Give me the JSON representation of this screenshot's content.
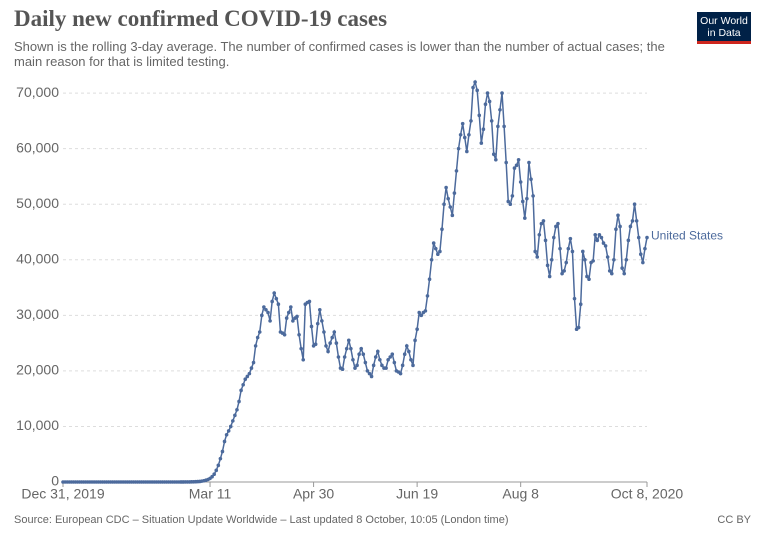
{
  "chart_data": {
    "type": "line",
    "title": "Daily new confirmed COVID-19 cases",
    "subtitle": "Shown is the rolling 3-day average. The number of confirmed cases is lower than the number of actual cases; the main reason for that is limited testing.",
    "logo": [
      "Our World",
      "in Data"
    ],
    "source": "Source: European CDC – Situation Update Worldwide – Last updated 8 October, 10:05 (London time)",
    "license": "CC BY",
    "grid": true,
    "x": [
      "2019-12-31",
      "2020-01-01",
      "2020-01-02",
      "2020-01-03",
      "2020-01-04",
      "2020-01-05",
      "2020-01-06",
      "2020-01-07",
      "2020-01-08",
      "2020-01-09",
      "2020-01-10",
      "2020-01-11",
      "2020-01-12",
      "2020-01-13",
      "2020-01-14",
      "2020-01-15",
      "2020-01-16",
      "2020-01-17",
      "2020-01-18",
      "2020-01-19",
      "2020-01-20",
      "2020-01-21",
      "2020-01-22",
      "2020-01-23",
      "2020-01-24",
      "2020-01-25",
      "2020-01-26",
      "2020-01-27",
      "2020-01-28",
      "2020-01-29",
      "2020-01-30",
      "2020-01-31",
      "2020-02-01",
      "2020-02-02",
      "2020-02-03",
      "2020-02-04",
      "2020-02-05",
      "2020-02-06",
      "2020-02-07",
      "2020-02-08",
      "2020-02-09",
      "2020-02-10",
      "2020-02-11",
      "2020-02-12",
      "2020-02-13",
      "2020-02-14",
      "2020-02-15",
      "2020-02-16",
      "2020-02-17",
      "2020-02-18",
      "2020-02-19",
      "2020-02-20",
      "2020-02-21",
      "2020-02-22",
      "2020-02-23",
      "2020-02-24",
      "2020-02-25",
      "2020-02-26",
      "2020-02-27",
      "2020-02-28",
      "2020-02-29",
      "2020-03-01",
      "2020-03-02",
      "2020-03-03",
      "2020-03-04",
      "2020-03-05",
      "2020-03-06",
      "2020-03-07",
      "2020-03-08",
      "2020-03-09",
      "2020-03-10",
      "2020-03-11",
      "2020-03-12",
      "2020-03-13",
      "2020-03-14",
      "2020-03-15",
      "2020-03-16",
      "2020-03-17",
      "2020-03-18",
      "2020-03-19",
      "2020-03-20",
      "2020-03-21",
      "2020-03-22",
      "2020-03-23",
      "2020-03-24",
      "2020-03-25",
      "2020-03-26",
      "2020-03-27",
      "2020-03-28",
      "2020-03-29",
      "2020-03-30",
      "2020-03-31",
      "2020-04-01",
      "2020-04-02",
      "2020-04-03",
      "2020-04-04",
      "2020-04-05",
      "2020-04-06",
      "2020-04-07",
      "2020-04-08",
      "2020-04-09",
      "2020-04-10",
      "2020-04-11",
      "2020-04-12",
      "2020-04-13",
      "2020-04-14",
      "2020-04-15",
      "2020-04-16",
      "2020-04-17",
      "2020-04-18",
      "2020-04-19",
      "2020-04-20",
      "2020-04-21",
      "2020-04-22",
      "2020-04-23",
      "2020-04-24",
      "2020-04-25",
      "2020-04-26",
      "2020-04-27",
      "2020-04-28",
      "2020-04-29",
      "2020-04-30",
      "2020-05-01",
      "2020-05-02",
      "2020-05-03",
      "2020-05-04",
      "2020-05-05",
      "2020-05-06",
      "2020-05-07",
      "2020-05-08",
      "2020-05-09",
      "2020-05-10",
      "2020-05-11",
      "2020-05-12",
      "2020-05-13",
      "2020-05-14",
      "2020-05-15",
      "2020-05-16",
      "2020-05-17",
      "2020-05-18",
      "2020-05-19",
      "2020-05-20",
      "2020-05-21",
      "2020-05-22",
      "2020-05-23",
      "2020-05-24",
      "2020-05-25",
      "2020-05-26",
      "2020-05-27",
      "2020-05-28",
      "2020-05-29",
      "2020-05-30",
      "2020-05-31",
      "2020-06-01",
      "2020-06-02",
      "2020-06-03",
      "2020-06-04",
      "2020-06-05",
      "2020-06-06",
      "2020-06-07",
      "2020-06-08",
      "2020-06-09",
      "2020-06-10",
      "2020-06-11",
      "2020-06-12",
      "2020-06-13",
      "2020-06-14",
      "2020-06-15",
      "2020-06-16",
      "2020-06-17",
      "2020-06-18",
      "2020-06-19",
      "2020-06-20",
      "2020-06-21",
      "2020-06-22",
      "2020-06-23",
      "2020-06-24",
      "2020-06-25",
      "2020-06-26",
      "2020-06-27",
      "2020-06-28",
      "2020-06-29",
      "2020-06-30",
      "2020-07-01",
      "2020-07-02",
      "2020-07-03",
      "2020-07-04",
      "2020-07-05",
      "2020-07-06",
      "2020-07-07",
      "2020-07-08",
      "2020-07-09",
      "2020-07-10",
      "2020-07-11",
      "2020-07-12",
      "2020-07-13",
      "2020-07-14",
      "2020-07-15",
      "2020-07-16",
      "2020-07-17",
      "2020-07-18",
      "2020-07-19",
      "2020-07-20",
      "2020-07-21",
      "2020-07-22",
      "2020-07-23",
      "2020-07-24",
      "2020-07-25",
      "2020-07-26",
      "2020-07-27",
      "2020-07-28",
      "2020-07-29",
      "2020-07-30",
      "2020-07-31",
      "2020-08-01",
      "2020-08-02",
      "2020-08-03",
      "2020-08-04",
      "2020-08-05",
      "2020-08-06",
      "2020-08-07",
      "2020-08-08",
      "2020-08-09",
      "2020-08-10",
      "2020-08-11",
      "2020-08-12",
      "2020-08-13",
      "2020-08-14",
      "2020-08-15",
      "2020-08-16",
      "2020-08-17",
      "2020-08-18",
      "2020-08-19",
      "2020-08-20",
      "2020-08-21",
      "2020-08-22",
      "2020-08-23",
      "2020-08-24",
      "2020-08-25",
      "2020-08-26",
      "2020-08-27",
      "2020-08-28",
      "2020-08-29",
      "2020-08-30",
      "2020-08-31",
      "2020-09-01",
      "2020-09-02",
      "2020-09-03",
      "2020-09-04",
      "2020-09-05",
      "2020-09-06",
      "2020-09-07",
      "2020-09-08",
      "2020-09-09",
      "2020-09-10",
      "2020-09-11",
      "2020-09-12",
      "2020-09-13",
      "2020-09-14",
      "2020-09-15",
      "2020-09-16",
      "2020-09-17",
      "2020-09-18",
      "2020-09-19",
      "2020-09-20",
      "2020-09-21",
      "2020-09-22",
      "2020-09-23",
      "2020-09-24",
      "2020-09-25",
      "2020-09-26",
      "2020-09-27",
      "2020-09-28",
      "2020-09-29",
      "2020-09-30",
      "2020-10-01",
      "2020-10-02",
      "2020-10-03",
      "2020-10-04",
      "2020-10-05",
      "2020-10-06",
      "2020-10-07",
      "2020-10-08"
    ],
    "series": [
      {
        "name": "United States",
        "color": "#4c6a9c",
        "values": [
          0,
          0,
          0,
          0,
          0,
          0,
          0,
          0,
          0,
          0,
          0,
          0,
          0,
          0,
          0,
          0,
          0,
          0,
          0,
          0,
          0,
          0,
          0,
          0,
          0,
          0,
          0,
          0,
          0,
          0,
          0,
          0,
          0,
          0,
          0,
          0,
          0,
          0,
          0,
          0,
          0,
          0,
          0,
          0,
          0,
          0,
          0,
          0,
          0,
          0,
          0,
          0,
          0,
          0,
          0,
          1,
          2,
          3,
          5,
          8,
          12,
          18,
          25,
          35,
          50,
          70,
          100,
          150,
          220,
          320,
          450,
          650,
          950,
          1400,
          2100,
          3000,
          4200,
          5500,
          7300,
          8500,
          9200,
          10000,
          11000,
          12000,
          13000,
          14500,
          16500,
          17500,
          18500,
          19000,
          19500,
          20500,
          21500,
          24500,
          26000,
          27000,
          30000,
          31500,
          31000,
          30500,
          29000,
          32500,
          34000,
          33000,
          32000,
          27000,
          26800,
          26500,
          29500,
          30500,
          31500,
          29000,
          29500,
          29800,
          26500,
          24000,
          22000,
          32000,
          32300,
          32500,
          28000,
          24500,
          24800,
          28500,
          31000,
          29000,
          27000,
          24500,
          23500,
          25000,
          26000,
          27000,
          25000,
          22500,
          20500,
          20300,
          22500,
          24000,
          25500,
          24000,
          22000,
          20500,
          21000,
          23000,
          24000,
          23000,
          21500,
          20000,
          19500,
          19000,
          21000,
          22500,
          23500,
          22000,
          21000,
          20500,
          20500,
          22000,
          22500,
          23000,
          21500,
          20000,
          19800,
          19500,
          21000,
          23000,
          24500,
          23500,
          22000,
          21000,
          25500,
          27500,
          30500,
          30000,
          30500,
          30800,
          33500,
          36500,
          40000,
          43000,
          42000,
          41000,
          41500,
          45500,
          50000,
          53000,
          51000,
          49500,
          48000,
          52000,
          56000,
          60000,
          62500,
          64500,
          62000,
          59500,
          62500,
          65000,
          71000,
          72000,
          70500,
          66000,
          61000,
          63500,
          68000,
          70000,
          68500,
          65000,
          59000,
          58000,
          64000,
          67000,
          70000,
          64000,
          57500,
          50500,
          50000,
          51500,
          56500,
          57000,
          58000,
          54000,
          50500,
          47500,
          51000,
          57500,
          54500,
          51500,
          41500,
          40500,
          44500,
          46500,
          47000,
          43500,
          39000,
          37000,
          40000,
          44000,
          46000,
          46500,
          42000,
          37500,
          38000,
          39500,
          42000,
          43800,
          41500,
          33000,
          27500,
          27800,
          32000,
          41500,
          40000,
          37000,
          36500,
          39500,
          39800,
          44500,
          43500,
          44500,
          44000,
          43000,
          42500,
          40500,
          38000,
          37500,
          40000,
          45500,
          48000,
          46000,
          38500,
          37500,
          40000,
          43500,
          46000,
          47000,
          50000,
          47000,
          44000,
          41000,
          39500,
          42000,
          44000
        ]
      }
    ],
    "xlim": [
      "2019-12-31",
      "2020-10-08"
    ],
    "xticks": [
      {
        "value": "2019-12-31",
        "label": "Dec 31, 2019"
      },
      {
        "value": "2020-03-11",
        "label": "Mar 11"
      },
      {
        "value": "2020-04-30",
        "label": "Apr 30"
      },
      {
        "value": "2020-06-19",
        "label": "Jun 19"
      },
      {
        "value": "2020-08-08",
        "label": "Aug 8"
      },
      {
        "value": "2020-10-08",
        "label": "Oct 8, 2020"
      }
    ],
    "ylim": [
      0,
      72000
    ],
    "yticks": [
      0,
      {
        "value": 10000,
        "label": "10,000"
      },
      {
        "value": 20000,
        "label": "20,000"
      },
      {
        "value": 30000,
        "label": "30,000"
      },
      {
        "value": 40000,
        "label": "40,000"
      },
      {
        "value": 50000,
        "label": "50,000"
      },
      {
        "value": 60000,
        "label": "60,000"
      },
      {
        "value": 70000,
        "label": "70,000"
      }
    ]
  }
}
